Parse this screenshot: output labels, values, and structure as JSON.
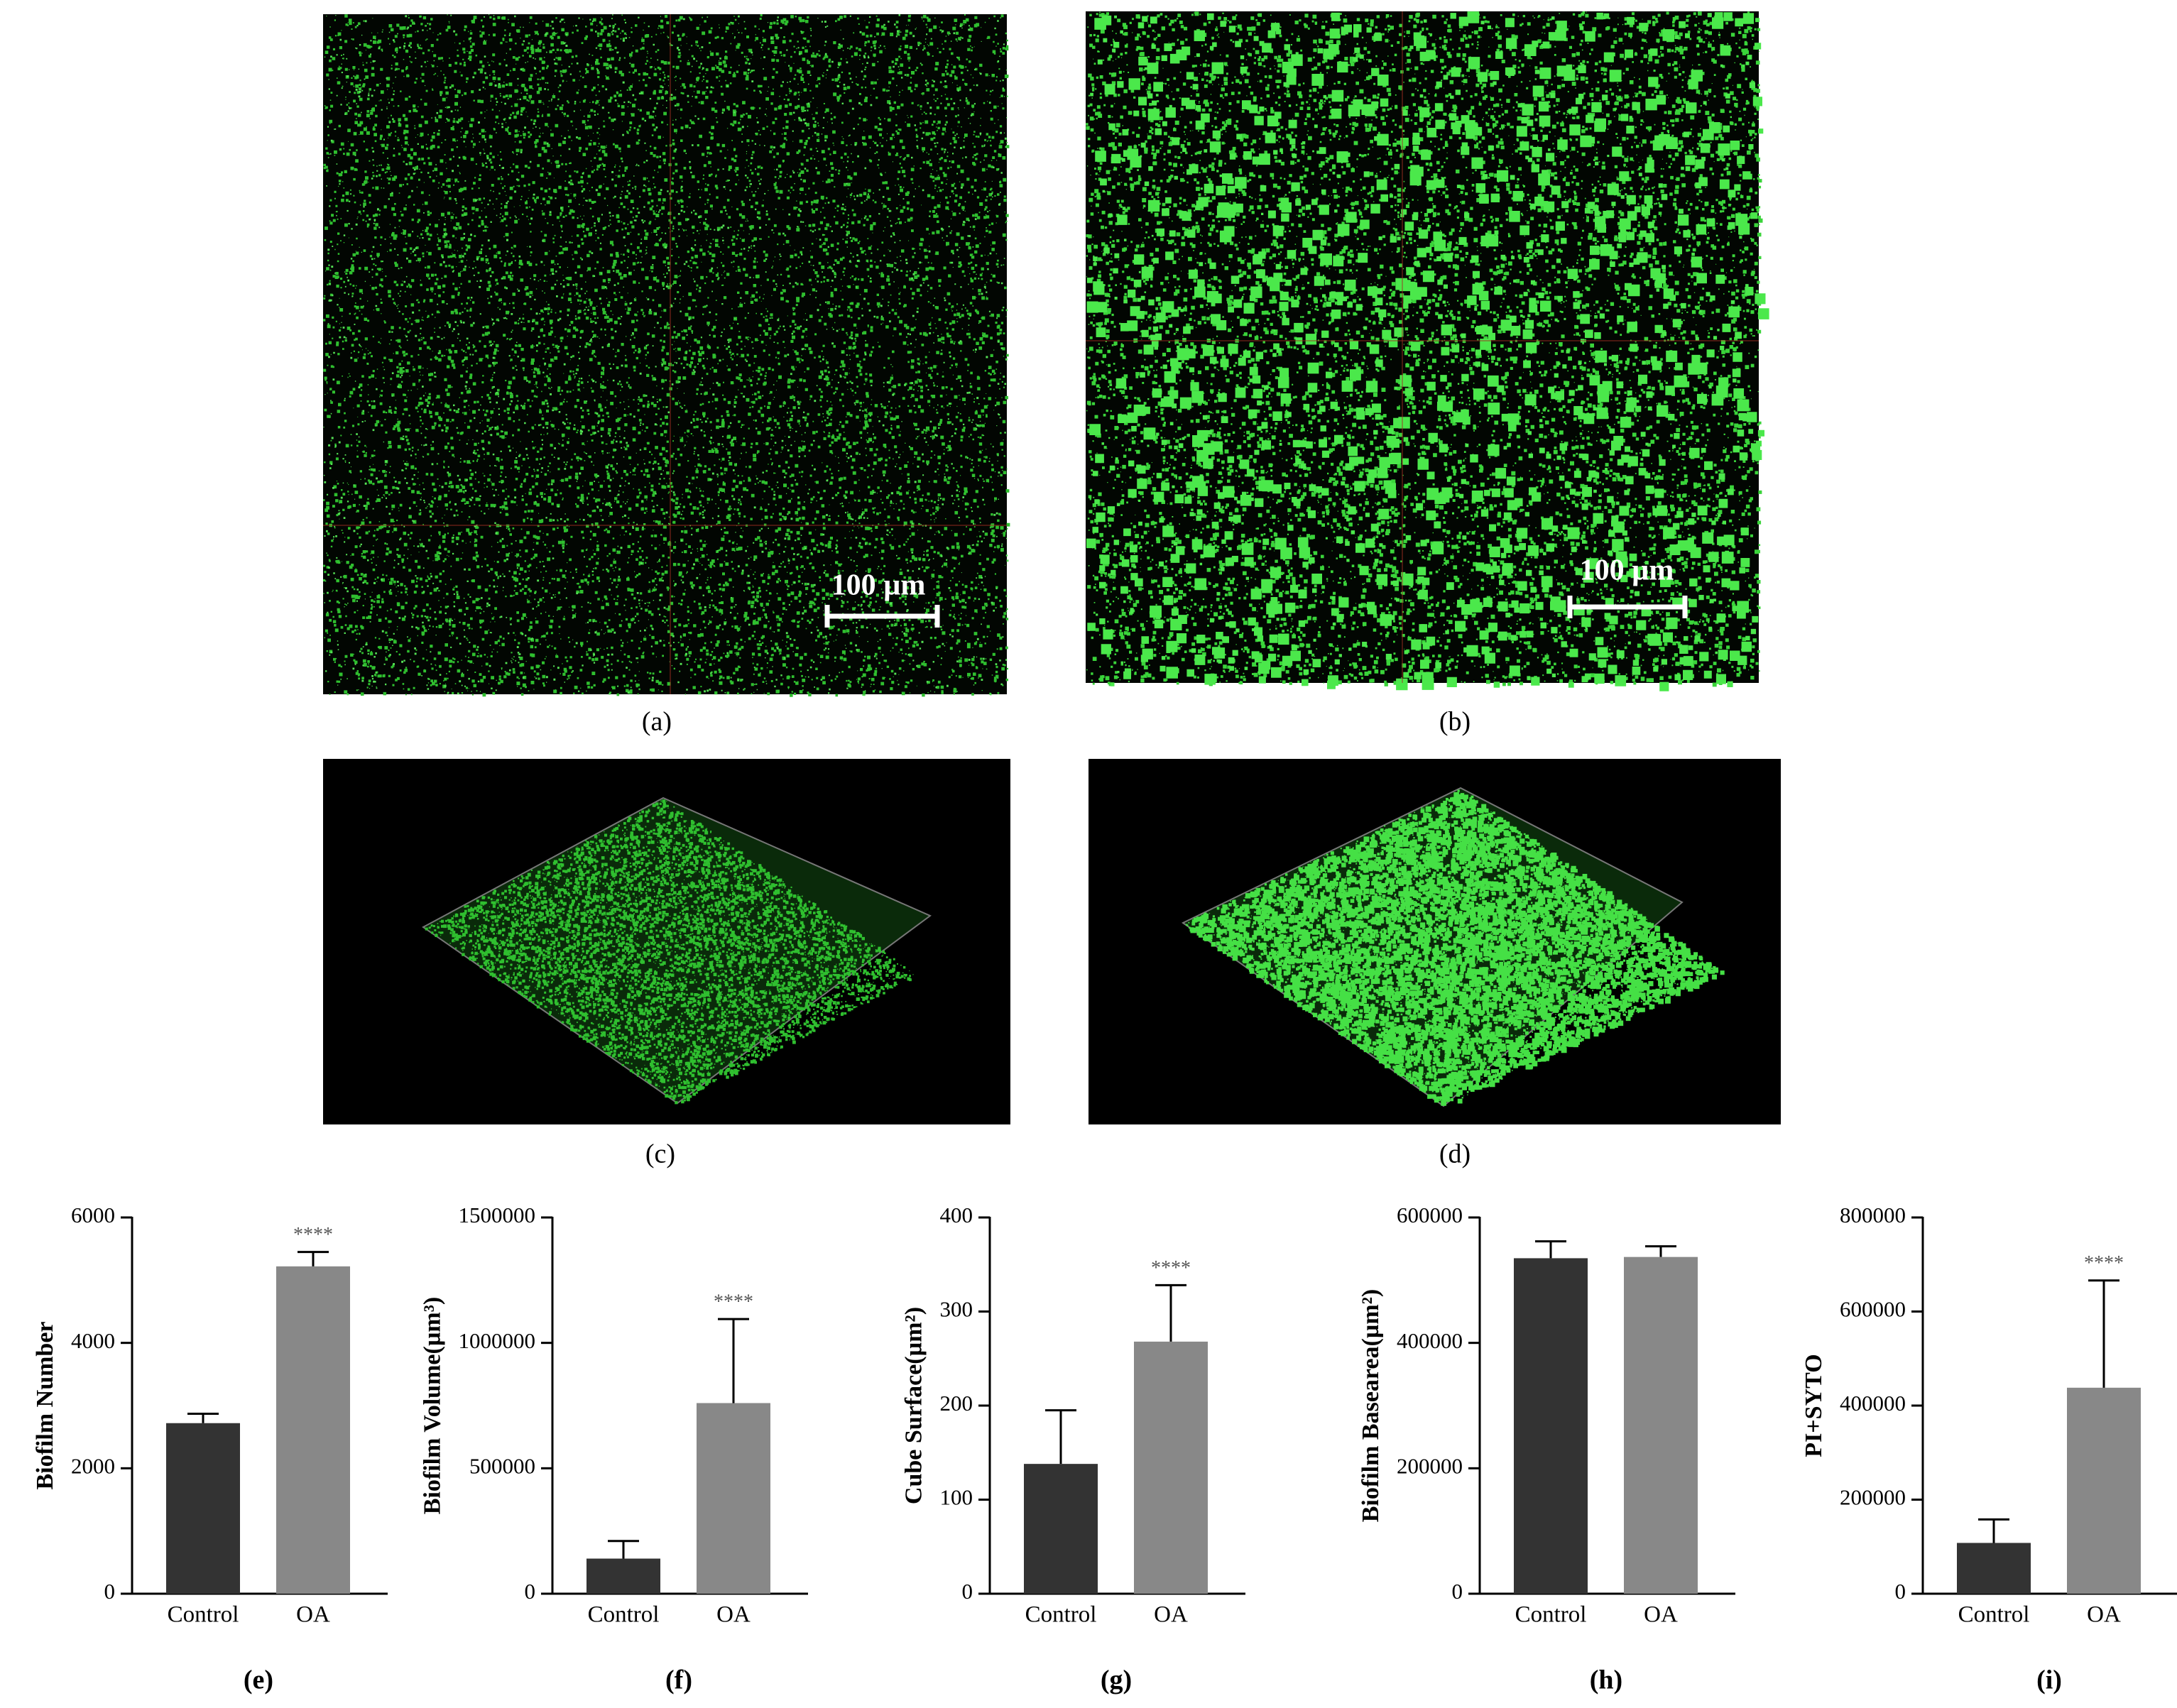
{
  "panels": [
    {
      "label": "(a)",
      "scale_bar": "100 µm"
    },
    {
      "label": "(b)",
      "scale_bar": "100 µm"
    },
    {
      "label": "(c)"
    },
    {
      "label": "(d)"
    }
  ],
  "chart_data": [
    {
      "type": "bar",
      "caption": "(e)",
      "y_label": "Biofilm Number",
      "categories": [
        "Control",
        "OA"
      ],
      "values": [
        2720,
        5220
      ],
      "errors": [
        150,
        230
      ],
      "colors": [
        "#333333",
        "#888888"
      ],
      "significance": [
        null,
        "****"
      ],
      "ylim": [
        0,
        6000
      ],
      "yticks": [
        0,
        2000,
        4000,
        6000
      ]
    },
    {
      "type": "bar",
      "caption": "(f)",
      "y_label": "Biofilm Volume(µm³)",
      "categories": [
        "Control",
        "OA"
      ],
      "values": [
        140000,
        760000
      ],
      "errors": [
        70000,
        335000
      ],
      "colors": [
        "#333333",
        "#888888"
      ],
      "significance": [
        null,
        "****"
      ],
      "ylim": [
        0,
        1500000
      ],
      "yticks": [
        0,
        500000,
        1000000,
        1500000
      ]
    },
    {
      "type": "bar",
      "caption": "(g)",
      "y_label": "Cube Surface(µm²)",
      "categories": [
        "Control",
        "OA"
      ],
      "values": [
        138,
        268
      ],
      "errors": [
        57,
        60
      ],
      "colors": [
        "#333333",
        "#888888"
      ],
      "significance": [
        null,
        "****"
      ],
      "ylim": [
        0,
        400
      ],
      "yticks": [
        0,
        100,
        200,
        300,
        400
      ]
    },
    {
      "type": "bar",
      "caption": "(h)",
      "y_label": "Biofilm Basearea(µm²)",
      "categories": [
        "Control",
        "OA"
      ],
      "values": [
        535000,
        537000
      ],
      "errors": [
        27000,
        17000
      ],
      "colors": [
        "#333333",
        "#888888"
      ],
      "ylim": [
        0,
        600000
      ],
      "yticks": [
        0,
        200000,
        400000,
        600000
      ]
    },
    {
      "type": "bar",
      "caption": "(i)",
      "y_label": "PI+SYTO",
      "categories": [
        "Control",
        "OA"
      ],
      "values": [
        108000,
        438000
      ],
      "errors": [
        50000,
        228000
      ],
      "colors": [
        "#333333",
        "#888888"
      ],
      "significance": [
        null,
        "****"
      ],
      "ylim": [
        0,
        800000
      ],
      "yticks": [
        0,
        200000,
        400000,
        600000,
        800000
      ]
    }
  ]
}
